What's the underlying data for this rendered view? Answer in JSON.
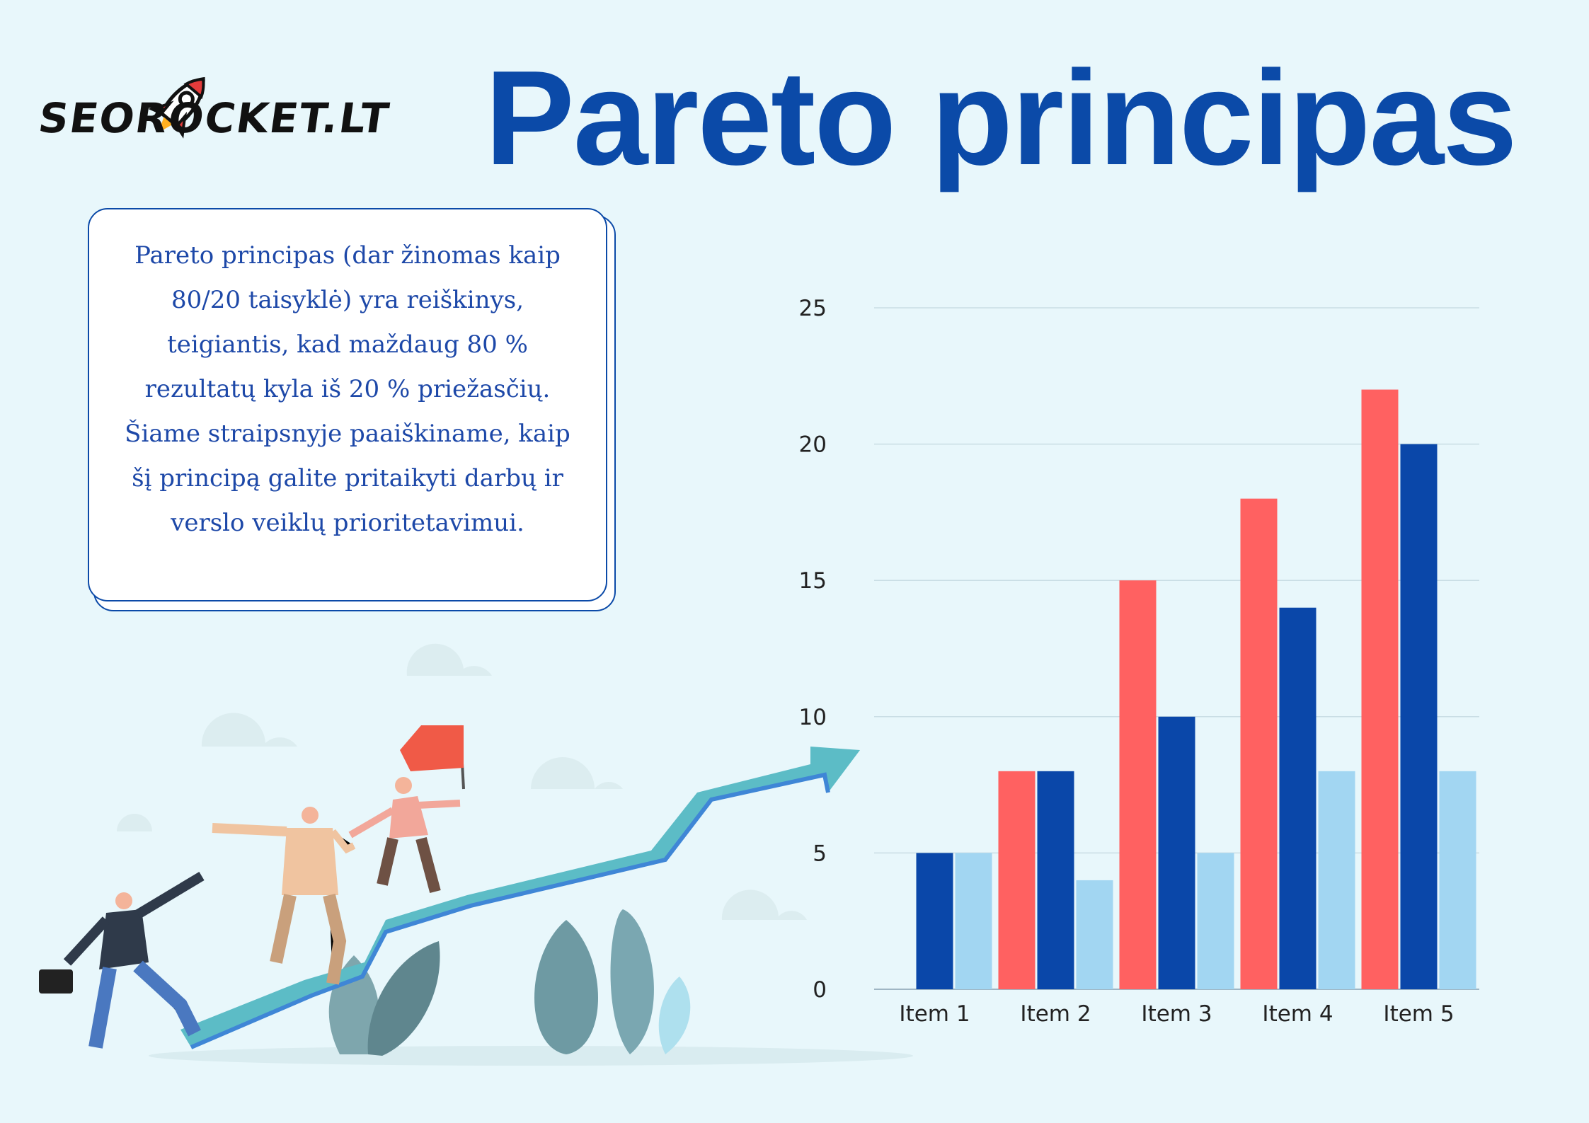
{
  "logo": {
    "text": "SEOROCKET.LT"
  },
  "title": "Pareto principas",
  "description": "Pareto principas (dar žinomas kaip 80/20 taisyklė) yra reiškinys, teigiantis, kad maždaug 80 % rezultatų kyla iš 20 % priežasčių. Šiame straipsnyje paaiškiname, kaip šį principą galite pritaikyti darbų ir verslo veiklų prioritetavimui.",
  "colors": {
    "title": "#0b4aa8",
    "series_1": "#ff6161",
    "series_2": "#0a47a9",
    "series_3": "#a2d6f2",
    "arrow": "#5cbcc6"
  },
  "chart_data": {
    "type": "bar",
    "categories": [
      "Item 1",
      "Item 2",
      "Item 3",
      "Item 4",
      "Item 5"
    ],
    "series": [
      {
        "values": [
          0,
          8,
          15,
          18,
          22
        ]
      },
      {
        "values": [
          5,
          8,
          10,
          14,
          20
        ]
      },
      {
        "values": [
          5,
          4,
          5,
          8,
          8
        ]
      }
    ],
    "yticks": [
      "0",
      "5",
      "10",
      "15",
      "20",
      "25"
    ],
    "ylim": [
      0,
      25
    ],
    "grid": true,
    "legend": "none"
  }
}
